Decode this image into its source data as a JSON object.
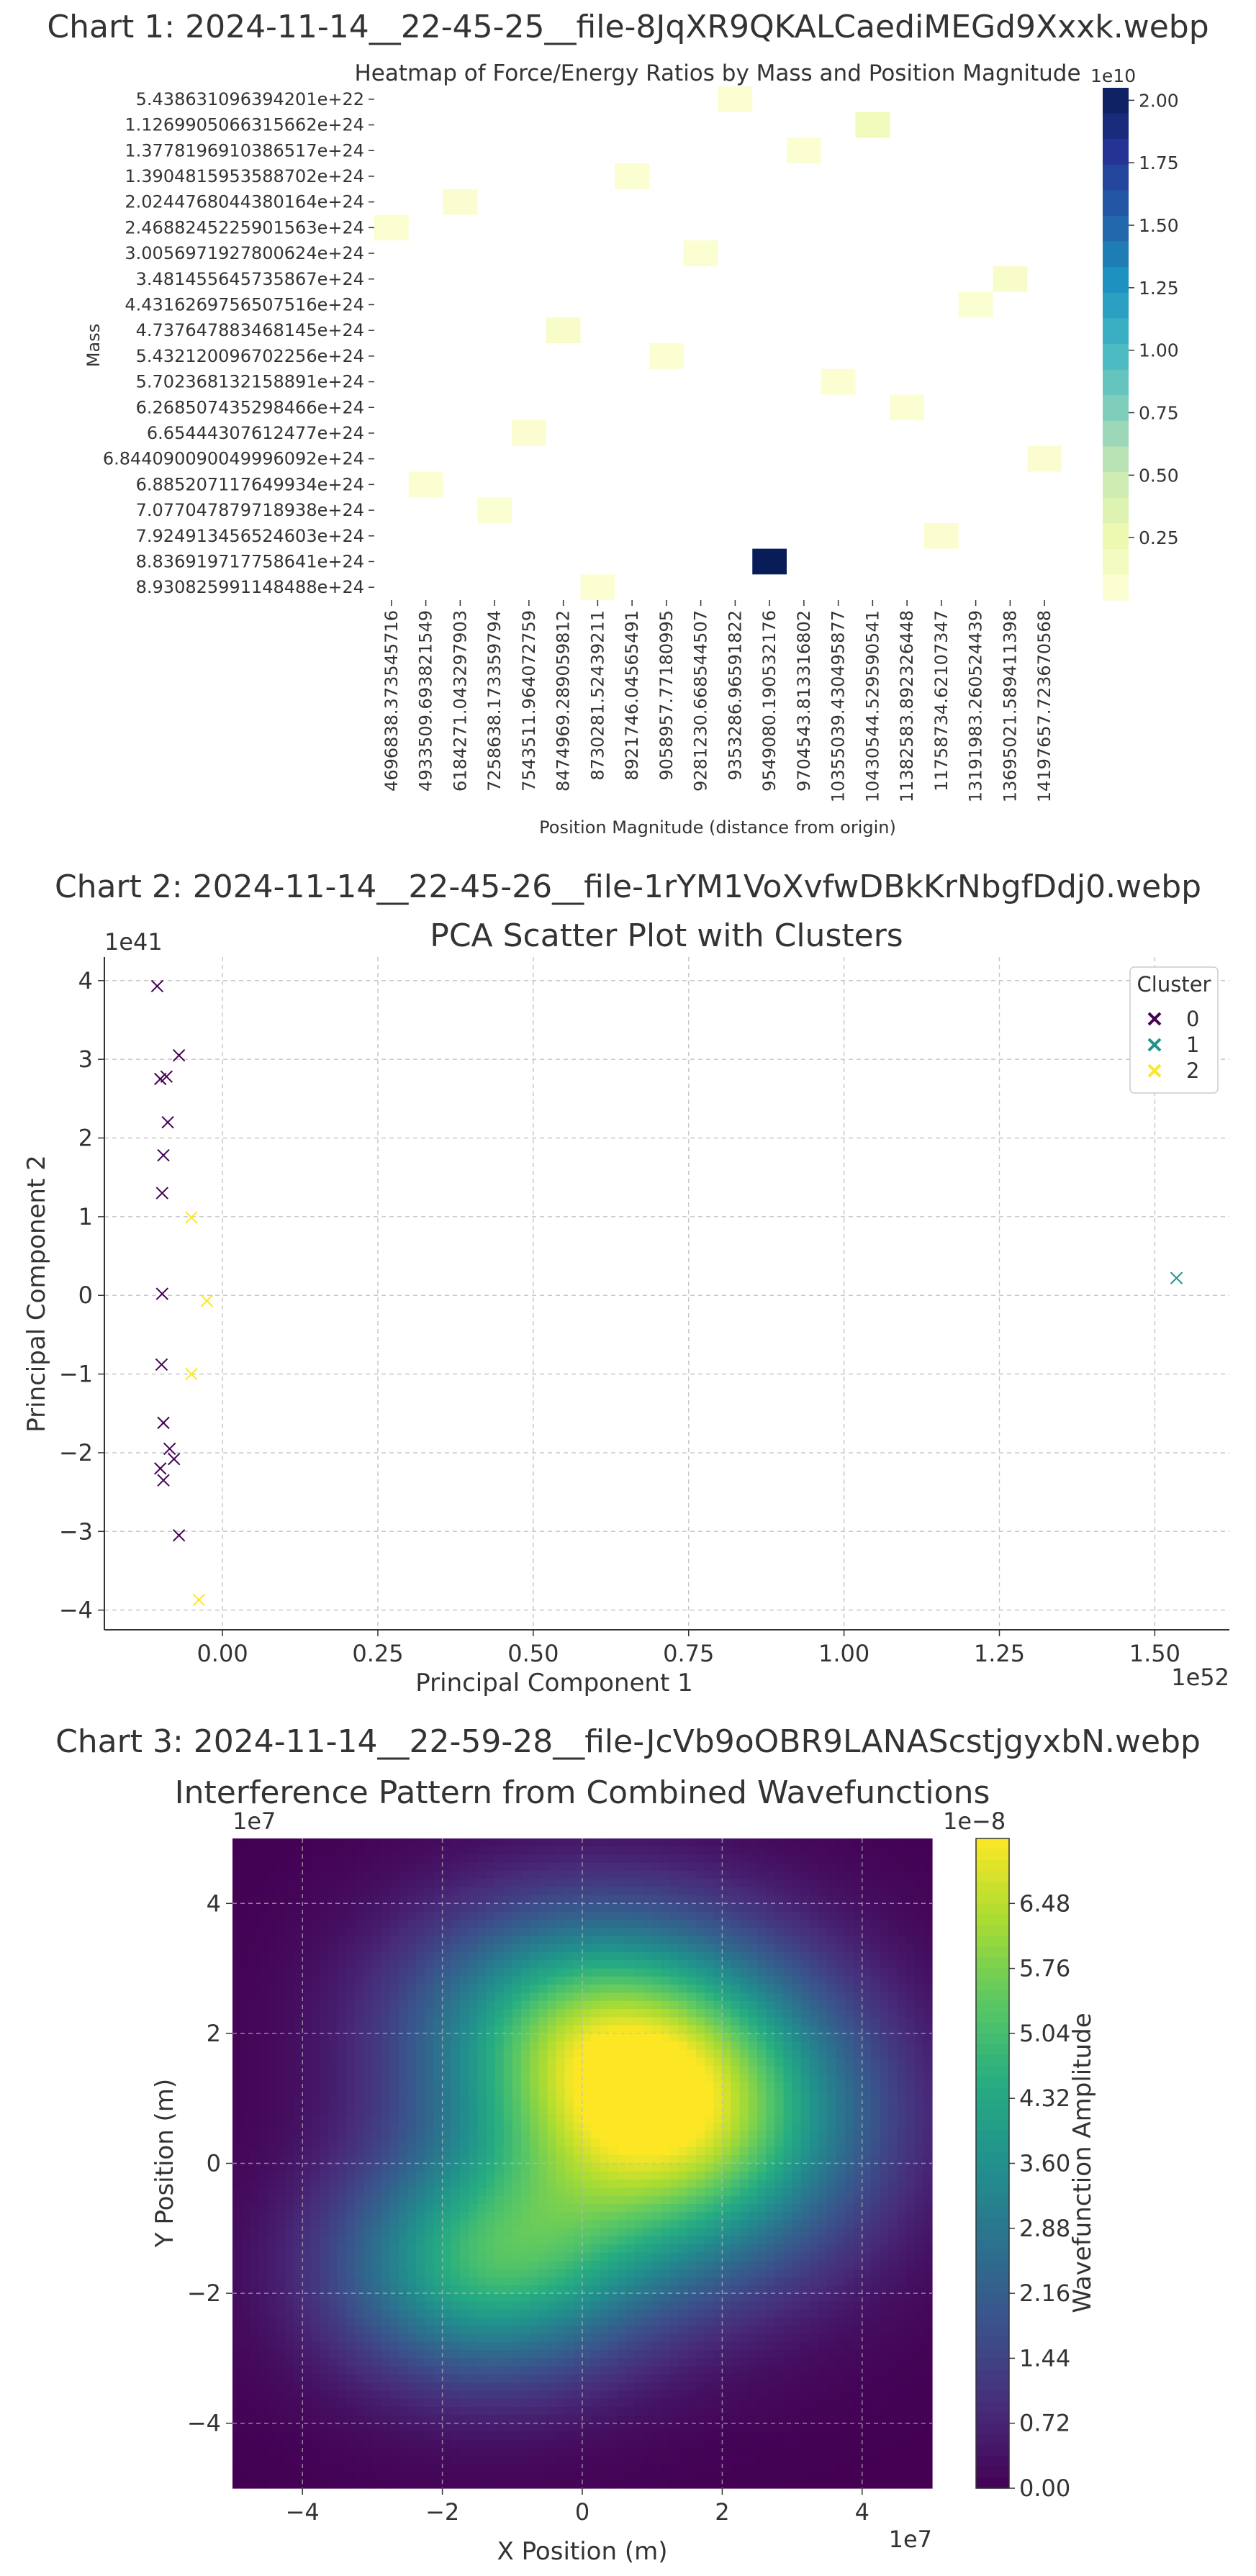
{
  "sections": [
    {
      "title": "Chart 1: 2024-11-14__22-45-25__file-8JqXR9QKALCaediMEGd9Xxxk.webp"
    },
    {
      "title": "Chart 2: 2024-11-14__22-45-26__file-1rYM1VoXvfwDBkKrNbgfDdj0.webp"
    },
    {
      "title": "Chart 3: 2024-11-14__22-59-28__file-JcVb9oOBR9LANAScstjgyxbN.webp"
    }
  ],
  "chart_data": [
    {
      "type": "heatmap",
      "title": "Heatmap of Force/Energy Ratios by Mass and Position Magnitude",
      "xlabel": "Position Magnitude (distance from origin)",
      "ylabel": "Mass",
      "x_categories": [
        "4696838.373545716",
        "4933509.693821549",
        "6184271.043297903",
        "7258638.173359794",
        "7543511.964072759",
        "8474969.289059812",
        "8730281.52439211",
        "8921746.04565491",
        "9058957.77180995",
        "9281230.668544507",
        "9353286.96591822",
        "9549080.190532176",
        "9704543.813316802",
        "10355039.430495877",
        "10430544.529590541",
        "11382583.892326448",
        "11758734.62107347",
        "13191983.260524439",
        "13695021.589411398",
        "14197657.723670568"
      ],
      "y_categories": [
        "5.438631096394201e+22",
        "1.1269905066315662e+24",
        "1.3778196910386517e+24",
        "1.3904815953588702e+24",
        "2.0244768044380164e+24",
        "2.4688245225901563e+24",
        "3.0056971927800624e+24",
        "3.481455645735867e+24",
        "4.4316269756507516e+24",
        "4.737647883468145e+24",
        "5.432120096702256e+24",
        "5.702368132158891e+24",
        "6.268507435298466e+24",
        "6.65444307612477e+24",
        "6.844090090049996092e+24",
        "6.885207117649934e+24",
        "7.077047879718938e+24",
        "7.924913456524603e+24",
        "8.836919717758641e+24",
        "8.930825991148488e+24"
      ],
      "cells": [
        {
          "row": 0,
          "col": 10,
          "value": 0.05
        },
        {
          "row": 1,
          "col": 14,
          "value": 0.2
        },
        {
          "row": 2,
          "col": 12,
          "value": 0.05
        },
        {
          "row": 3,
          "col": 7,
          "value": 0.05
        },
        {
          "row": 4,
          "col": 2,
          "value": 0.06
        },
        {
          "row": 5,
          "col": 0,
          "value": 0.05
        },
        {
          "row": 6,
          "col": 9,
          "value": 0.05
        },
        {
          "row": 7,
          "col": 18,
          "value": 0.1
        },
        {
          "row": 8,
          "col": 17,
          "value": 0.05
        },
        {
          "row": 9,
          "col": 5,
          "value": 0.1
        },
        {
          "row": 10,
          "col": 8,
          "value": 0.05
        },
        {
          "row": 11,
          "col": 13,
          "value": 0.05
        },
        {
          "row": 12,
          "col": 15,
          "value": 0.05
        },
        {
          "row": 13,
          "col": 4,
          "value": 0.06
        },
        {
          "row": 14,
          "col": 19,
          "value": 0.06
        },
        {
          "row": 15,
          "col": 1,
          "value": 0.05
        },
        {
          "row": 16,
          "col": 3,
          "value": 0.05
        },
        {
          "row": 17,
          "col": 16,
          "value": 0.06
        },
        {
          "row": 18,
          "col": 11,
          "value": 2.05
        },
        {
          "row": 19,
          "col": 6,
          "value": 0.05
        }
      ],
      "colorbar": {
        "ticks": [
          "0.25",
          "0.50",
          "0.75",
          "1.00",
          "1.25",
          "1.50",
          "1.75",
          "2.00"
        ],
        "tick_values": [
          0.25,
          0.5,
          0.75,
          1.0,
          1.25,
          1.5,
          1.75,
          2.0
        ],
        "min": 0.0,
        "max": 2.05,
        "offset_label": "1e10",
        "colormap": "YlGnBu"
      }
    },
    {
      "type": "scatter",
      "title": "PCA Scatter Plot with Clusters",
      "xlabel": "Principal Component 1",
      "ylabel": "Principal Component 2",
      "x_offset_label": "1e52",
      "y_offset_label": "1e41",
      "xlim": [
        -0.19,
        1.62
      ],
      "ylim": [
        -4.25,
        4.3
      ],
      "x_ticks": [
        "0.00",
        "0.25",
        "0.50",
        "0.75",
        "1.00",
        "1.25",
        "1.50"
      ],
      "x_tick_values": [
        0,
        0.25,
        0.5,
        0.75,
        1.0,
        1.25,
        1.5
      ],
      "y_ticks": [
        "−4",
        "−3",
        "−2",
        "−1",
        "0",
        "1",
        "2",
        "3",
        "4"
      ],
      "y_tick_values": [
        -4,
        -3,
        -2,
        -1,
        0,
        1,
        2,
        3,
        4
      ],
      "grid": true,
      "legend": {
        "title": "Cluster",
        "position": "top-right"
      },
      "series": [
        {
          "name": "0",
          "color": "#440154",
          "x": [
            -0.105,
            -0.07,
            -0.1,
            -0.09,
            -0.088,
            -0.095,
            -0.097,
            -0.097,
            -0.098,
            -0.095,
            -0.085,
            -0.078,
            -0.1,
            -0.095,
            -0.07
          ],
          "y": [
            3.93,
            3.05,
            2.75,
            2.78,
            2.2,
            1.78,
            1.3,
            0.02,
            -0.88,
            -1.62,
            -1.95,
            -2.08,
            -2.2,
            -2.35,
            -3.05
          ]
        },
        {
          "name": "1",
          "color": "#21918c",
          "x": [
            1.535
          ],
          "y": [
            0.22
          ]
        },
        {
          "name": "2",
          "color": "#fde725",
          "x": [
            -0.05,
            -0.025,
            -0.05,
            -0.038
          ],
          "y": [
            0.99,
            -0.07,
            -1.0,
            -3.87
          ]
        }
      ]
    },
    {
      "type": "heatmap",
      "title": "Interference Pattern from Combined Wavefunctions",
      "xlabel": "X Position (m)",
      "ylabel": "Y Position (m)",
      "x_offset_label": "1e7",
      "y_offset_label": "1e7",
      "xlim": [
        -5,
        5
      ],
      "ylim": [
        -5,
        5
      ],
      "x_ticks": [
        "−4",
        "−2",
        "0",
        "2",
        "4"
      ],
      "x_tick_values": [
        -4,
        -2,
        0,
        2,
        4
      ],
      "y_ticks": [
        "−4",
        "−2",
        "0",
        "2",
        "4"
      ],
      "y_tick_values": [
        -4,
        -2,
        0,
        2,
        4
      ],
      "grid": true,
      "colorbar": {
        "label": "Wavefunction Amplitude",
        "offset_label": "1e−8",
        "ticks": [
          "0.00",
          "0.72",
          "1.44",
          "2.16",
          "2.88",
          "3.60",
          "4.32",
          "5.04",
          "5.76",
          "6.48"
        ],
        "tick_values": [
          0,
          0.72,
          1.44,
          2.16,
          2.88,
          3.6,
          4.32,
          5.04,
          5.76,
          6.48
        ],
        "min": 0,
        "max": 7.2,
        "colormap": "viridis"
      },
      "components": [
        {
          "cx": 1.3,
          "cy": 0.7,
          "sx": 1.8,
          "sy": 1.6,
          "amp": 6.5
        },
        {
          "cx": -1.4,
          "cy": -1.6,
          "sx": 1.5,
          "sy": 1.2,
          "amp": 4.3
        },
        {
          "cx": -0.2,
          "cy": 2.2,
          "sx": 1.7,
          "sy": 1.3,
          "amp": 3.3
        }
      ]
    }
  ]
}
